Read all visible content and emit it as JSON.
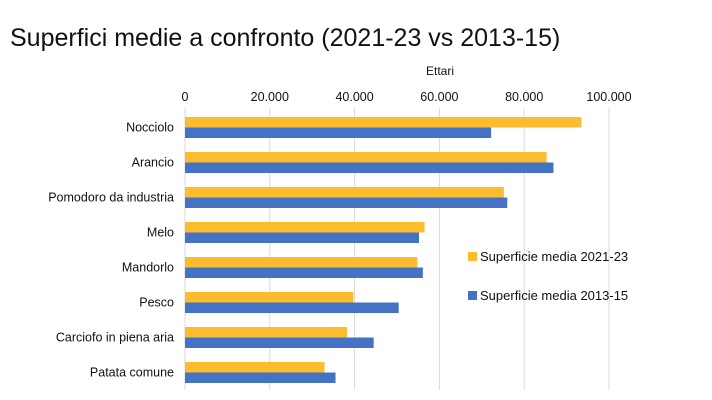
{
  "chart_data": {
    "type": "bar",
    "orientation": "horizontal",
    "title": "Superfici medie a confronto (2021-23 vs 2013-15)",
    "xlabel": "Ettari",
    "ylabel": "",
    "xlim": [
      0,
      100000
    ],
    "xticks": [
      "0",
      "20.000",
      "40.000",
      "60.000",
      "80.000",
      "100.000"
    ],
    "xtick_values": [
      0,
      20000,
      40000,
      60000,
      80000,
      100000
    ],
    "grid": true,
    "legend_position": "right",
    "categories": [
      "Nocciolo",
      "Arancio",
      "Pomodoro da industria",
      "Melo",
      "Mandorlo",
      "Pesco",
      "Carciofo in piena aria",
      "Patata comune"
    ],
    "series": [
      {
        "name": "Superficie media 2021-23",
        "color": "#FBBC2D",
        "values": [
          93500,
          85300,
          75200,
          56500,
          54800,
          39700,
          38200,
          32900
        ]
      },
      {
        "name": "Superficie media 2013-15",
        "color": "#4472C4",
        "values": [
          72200,
          86900,
          76000,
          55200,
          56100,
          50400,
          44500,
          35500
        ]
      }
    ]
  }
}
